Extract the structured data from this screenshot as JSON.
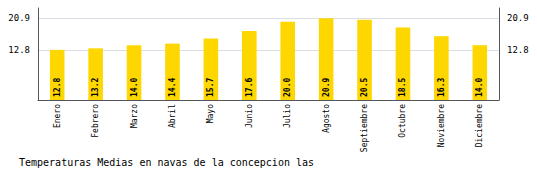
{
  "chart_data": {
    "type": "bar",
    "title": "Temperaturas Medias en navas de la concepcion las",
    "categories": [
      "Enero",
      "Febrero",
      "Marzo",
      "Abril",
      "Mayo",
      "Junio",
      "Julio",
      "Agosto",
      "Septiembre",
      "Octubre",
      "Noviembre",
      "Diciembre"
    ],
    "values": [
      12.8,
      13.2,
      14.0,
      14.4,
      15.7,
      17.6,
      20.0,
      20.9,
      20.5,
      18.5,
      16.3,
      14.0
    ],
    "value_labels": [
      "12.8",
      "13.2",
      "14.0",
      "14.4",
      "15.7",
      "17.6",
      "20.0",
      "20.9",
      "20.5",
      "18.5",
      "16.3",
      "14.0"
    ],
    "color": "#FFD700",
    "ylim": [
      0,
      23.5
    ],
    "yticks": [
      12.8,
      20.9
    ],
    "y2lim": [
      0,
      23.5
    ],
    "y2ticks": [
      12.8,
      20.9
    ],
    "grid": true,
    "data_labels": true
  }
}
